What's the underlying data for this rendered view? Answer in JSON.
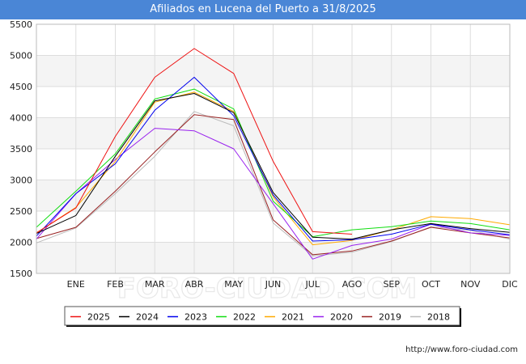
{
  "chart_data": {
    "type": "line",
    "title": "Afiliados en Lucena del Puerto a 31/8/2025",
    "categories": [
      "",
      "ENE",
      "FEB",
      "MAR",
      "ABR",
      "MAY",
      "JUN",
      "JUL",
      "AGO",
      "SEP",
      "OCT",
      "NOV",
      "DIC"
    ],
    "yticks": [
      1500,
      2000,
      2500,
      3000,
      3500,
      4000,
      4500,
      5000,
      5500
    ],
    "ylim": [
      1500,
      5500
    ],
    "xlabel": "",
    "ylabel": "",
    "grid": true,
    "legend_position": "bottom",
    "watermark": "FORO-CIUDAD.COM",
    "series": [
      {
        "name": "2025",
        "color": "#ee1111",
        "values": [
          2150,
          2550,
          3700,
          4650,
          5110,
          4710,
          3300,
          2170,
          2130,
          null,
          null,
          null,
          null
        ]
      },
      {
        "name": "2024",
        "color": "#000000",
        "values": [
          2140,
          2430,
          3380,
          4270,
          4390,
          4080,
          2800,
          2080,
          2050,
          2200,
          2300,
          2220,
          2160
        ]
      },
      {
        "name": "2023",
        "color": "#0000ee",
        "values": [
          2100,
          2780,
          3260,
          4120,
          4650,
          4030,
          2760,
          2020,
          2040,
          2130,
          2290,
          2200,
          2120
        ]
      },
      {
        "name": "2022",
        "color": "#11dd11",
        "values": [
          2240,
          2820,
          3420,
          4300,
          4460,
          4140,
          2660,
          2090,
          2200,
          2250,
          2340,
          2300,
          2200
        ]
      },
      {
        "name": "2021",
        "color": "#ffaa00",
        "values": [
          2150,
          2560,
          3300,
          4250,
          4410,
          4100,
          2730,
          1960,
          2030,
          2200,
          2410,
          2380,
          2280
        ]
      },
      {
        "name": "2020",
        "color": "#9922ee",
        "values": [
          2050,
          2780,
          3330,
          3830,
          3790,
          3500,
          2620,
          1730,
          1950,
          2050,
          2290,
          2150,
          2110
        ]
      },
      {
        "name": "2019",
        "color": "#992222",
        "values": [
          2060,
          2240,
          2820,
          3450,
          4050,
          3970,
          2360,
          1800,
          1860,
          2020,
          2240,
          2150,
          2070
        ]
      },
      {
        "name": "2018",
        "color": "#bbbbbb",
        "values": [
          1990,
          2230,
          2780,
          3380,
          4100,
          3870,
          2310,
          1780,
          1840,
          2010,
          2250,
          2190,
          2050
        ]
      }
    ]
  },
  "footer_url": "http://www.foro-ciudad.com"
}
